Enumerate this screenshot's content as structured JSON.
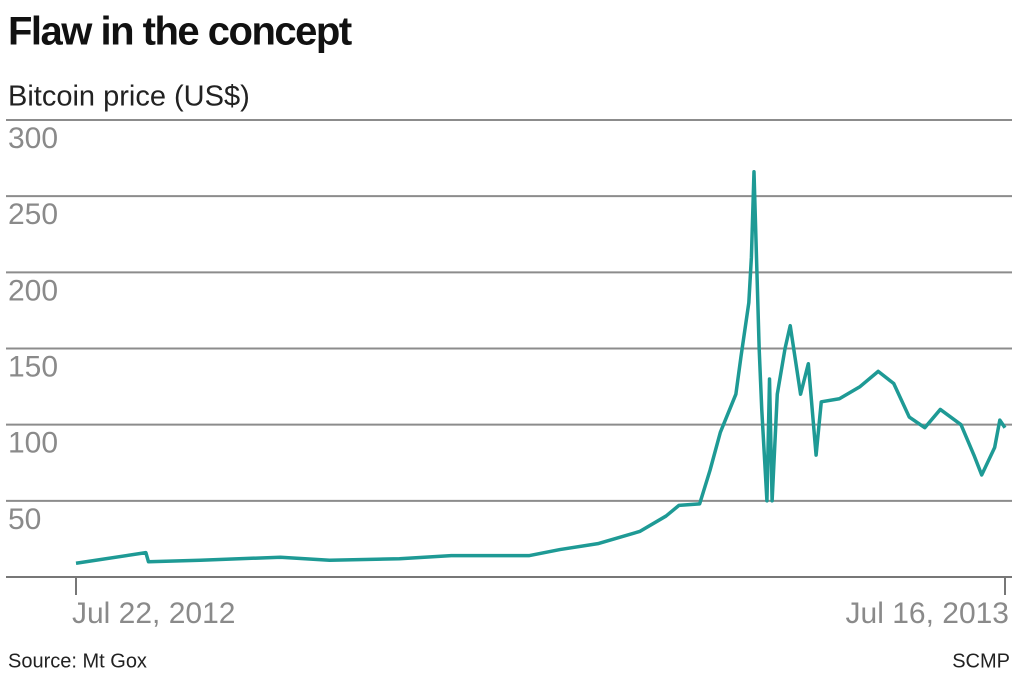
{
  "chart_data": {
    "type": "line",
    "title": "Flaw in the concept",
    "subtitle": "Bitcoin price (US$)",
    "source": "Source: Mt Gox",
    "credit": "SCMP",
    "x": [
      "2012-07-22",
      "2012-08-18",
      "2012-08-19",
      "2012-09-08",
      "2012-10-09",
      "2012-10-28",
      "2012-11-24",
      "2012-12-14",
      "2013-01-13",
      "2013-01-25",
      "2013-02-09",
      "2013-02-25",
      "2013-03-07",
      "2013-03-12",
      "2013-03-20",
      "2013-03-24",
      "2013-03-28",
      "2013-04-03",
      "2013-04-05",
      "2013-04-08",
      "2013-04-09",
      "2013-04-10",
      "2013-04-12",
      "2013-04-13",
      "2013-04-15",
      "2013-04-16",
      "2013-04-17",
      "2013-04-19",
      "2013-04-22",
      "2013-04-24",
      "2013-04-28",
      "2013-05-01",
      "2013-05-04",
      "2013-05-06",
      "2013-05-13",
      "2013-05-21",
      "2013-05-28",
      "2013-06-03",
      "2013-06-09",
      "2013-06-15",
      "2013-06-21",
      "2013-06-29",
      "2013-07-04",
      "2013-07-07",
      "2013-07-12",
      "2013-07-14",
      "2013-07-16"
    ],
    "series": [
      {
        "name": "Bitcoin price",
        "color": "#1e9a95",
        "values": [
          9,
          16,
          10,
          11,
          13,
          11,
          12,
          14,
          14,
          18,
          22,
          30,
          40,
          47,
          48,
          70,
          95,
          120,
          145,
          180,
          210,
          266,
          150,
          110,
          50,
          130,
          50,
          120,
          150,
          165,
          120,
          140,
          80,
          115,
          117,
          125,
          135,
          127,
          105,
          98,
          110,
          100,
          80,
          67,
          85,
          103,
          98
        ]
      }
    ],
    "xlim": [
      "2012-07-22",
      "2013-07-16"
    ],
    "xticks": [
      {
        "value": "2012-07-22",
        "label": "Jul 22, 2012"
      },
      {
        "value": "2013-07-16",
        "label": "Jul 16, 2013"
      }
    ],
    "ylim": [
      0,
      300
    ],
    "yticks": [
      50,
      100,
      150,
      200,
      250,
      300
    ],
    "grid": true
  }
}
